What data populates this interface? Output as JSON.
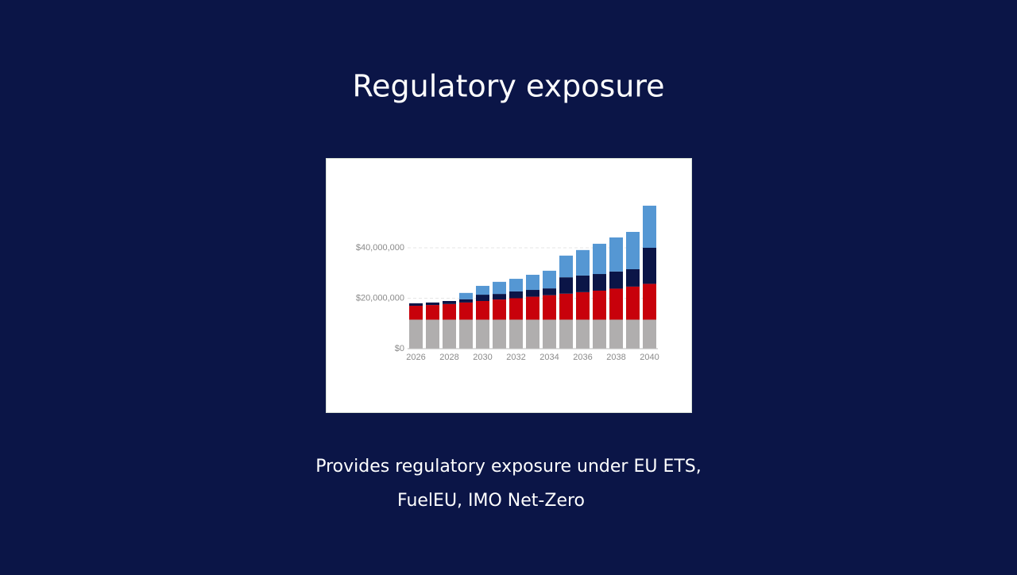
{
  "title": "Regulatory exposure",
  "description": [
    "Provides regulatory exposure under EU ETS,",
    "FuelEU, IMO Net-Zero"
  ],
  "chart_data": {
    "type": "stacked_bar",
    "categories": [
      "2026",
      null,
      "2028",
      null,
      "2030",
      null,
      "2032",
      null,
      "2034",
      null,
      "2036",
      null,
      "2038",
      null,
      "2040"
    ],
    "series": [
      {
        "color": "#b0aeae",
        "values": [
          11500000,
          11500000,
          11500000,
          11500000,
          11500000,
          11500000,
          11500000,
          11500000,
          11500000,
          11500000,
          11500000,
          11500000,
          11500000,
          11500000,
          11500000
        ]
      },
      {
        "color": "#c8010b",
        "values": [
          5500000,
          5800000,
          6200000,
          6800000,
          7400000,
          8000000,
          8500000,
          9100000,
          9700000,
          10300000,
          10900000,
          11500000,
          12300000,
          13100000,
          14200000
        ]
      },
      {
        "color": "#0b1547",
        "values": [
          1000000,
          1000000,
          1200000,
          1300000,
          2500000,
          2200000,
          2700000,
          2700000,
          2700000,
          6500000,
          6600000,
          6600000,
          6800000,
          6900000,
          14300000
        ]
      },
      {
        "color": "#5597d3",
        "values": [
          0,
          0,
          0,
          2500000,
          3500000,
          4800000,
          5000000,
          6000000,
          7000000,
          8600000,
          10100000,
          12000000,
          13500000,
          14800000,
          16700000
        ]
      }
    ],
    "ylim": [
      0,
      58000000
    ],
    "yticks": [
      {
        "value": 0,
        "label": "$0"
      },
      {
        "value": 20000000,
        "label": "$20,000,000"
      },
      {
        "value": 40000000,
        "label": "$40,000,000"
      }
    ],
    "grid": true
  }
}
